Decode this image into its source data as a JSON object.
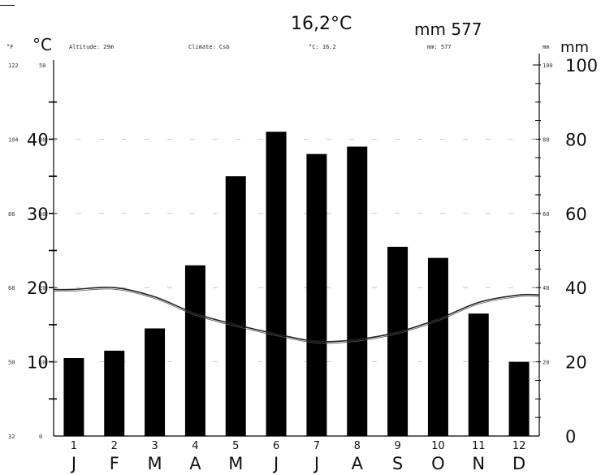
{
  "header": {
    "annual_temp": "16,2°C",
    "annual_precip": "mm 577"
  },
  "info_row": {
    "altitude": "Altitude: 29m",
    "climate": "Climate: Csb",
    "temp": "°C: 16.2",
    "precip": "mm: 577"
  },
  "axis_titles": {
    "far_left": "°F",
    "left": "°C",
    "right_printed": "mm",
    "right": "mm"
  },
  "chart_data": {
    "type": "bar",
    "title": "",
    "categories": [
      "J",
      "F",
      "M",
      "A",
      "M",
      "J",
      "J",
      "A",
      "S",
      "O",
      "N",
      "D"
    ],
    "month_numbers": [
      "1",
      "2",
      "3",
      "4",
      "5",
      "6",
      "7",
      "8",
      "9",
      "10",
      "11",
      "12"
    ],
    "series": [
      {
        "name": "",
        "kind": "bar",
        "axis": "left",
        "unit": "°C",
        "values": [
          10.5,
          11.5,
          14.5,
          23,
          35,
          41,
          38,
          39,
          25.5,
          24,
          16.5,
          10
        ],
        "color": "#000000"
      },
      {
        "name": "",
        "kind": "line",
        "axis": "right",
        "unit": "mm",
        "values": [
          39.5,
          40,
          37.5,
          33,
          30,
          27.5,
          25.5,
          26,
          28,
          31.5,
          36,
          38
        ],
        "color": "#222222"
      }
    ],
    "left_axis": {
      "unit": "°C",
      "range": [
        0,
        50
      ],
      "printed_ticks": [
        "0",
        "10",
        "20",
        "30",
        "40",
        "50"
      ],
      "hand_ticks": [
        "10",
        "20",
        "30",
        "40"
      ]
    },
    "far_left_axis": {
      "unit": "°F",
      "printed_ticks": [
        "32",
        "50",
        "68",
        "86",
        "104",
        "122"
      ]
    },
    "right_axis": {
      "unit": "mm",
      "range": [
        0,
        100
      ],
      "printed_ticks": [
        "20",
        "40",
        "60",
        "80",
        "100"
      ],
      "hand_ticks": [
        "0",
        "20",
        "40",
        "60",
        "80",
        "100"
      ]
    },
    "grid": "dashed"
  }
}
